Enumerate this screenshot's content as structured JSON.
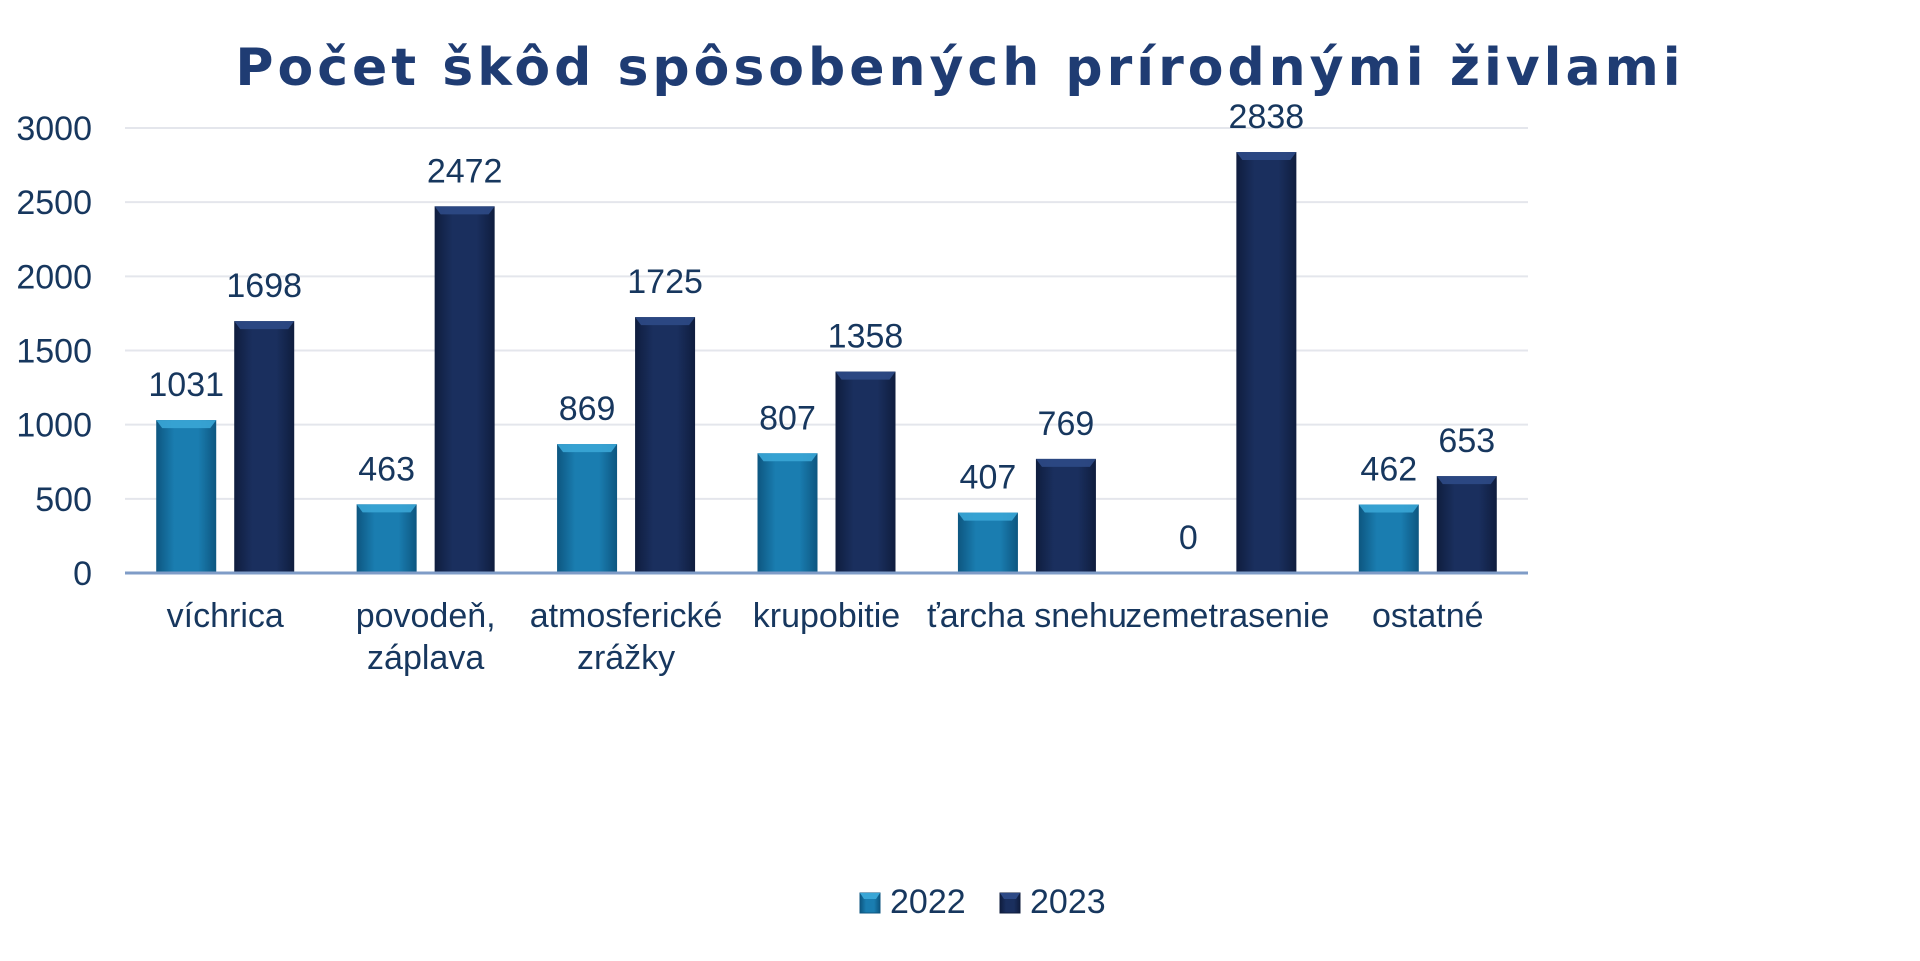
{
  "chart_data": {
    "type": "bar",
    "title": "Počet škôd spôsobených prírodnými živlami",
    "xlabel": "",
    "ylabel": "",
    "ylim": [
      0,
      3000
    ],
    "yticks": [
      0,
      500,
      1000,
      1500,
      2000,
      2500,
      3000
    ],
    "grid": true,
    "legend_position": "bottom",
    "categories": [
      [
        "víchrica"
      ],
      [
        "povodeň,",
        "záplava"
      ],
      [
        "atmosferické",
        "zrážky"
      ],
      [
        "krupobitie"
      ],
      [
        "ťarcha snehu"
      ],
      [
        "zemetrasenie"
      ],
      [
        "ostatné"
      ]
    ],
    "series": [
      {
        "name": "2022",
        "values": [
          1031,
          463,
          869,
          807,
          407,
          0,
          462
        ],
        "color": "#1a7db0"
      },
      {
        "name": "2023",
        "values": [
          1698,
          2472,
          1725,
          1358,
          769,
          2838,
          653
        ],
        "color": "#1a2f5e"
      }
    ],
    "colors": {
      "text": "#17375e",
      "title": "#1f3c73",
      "grid": "#e4e6ec",
      "axis": "#7f9cc7"
    }
  }
}
